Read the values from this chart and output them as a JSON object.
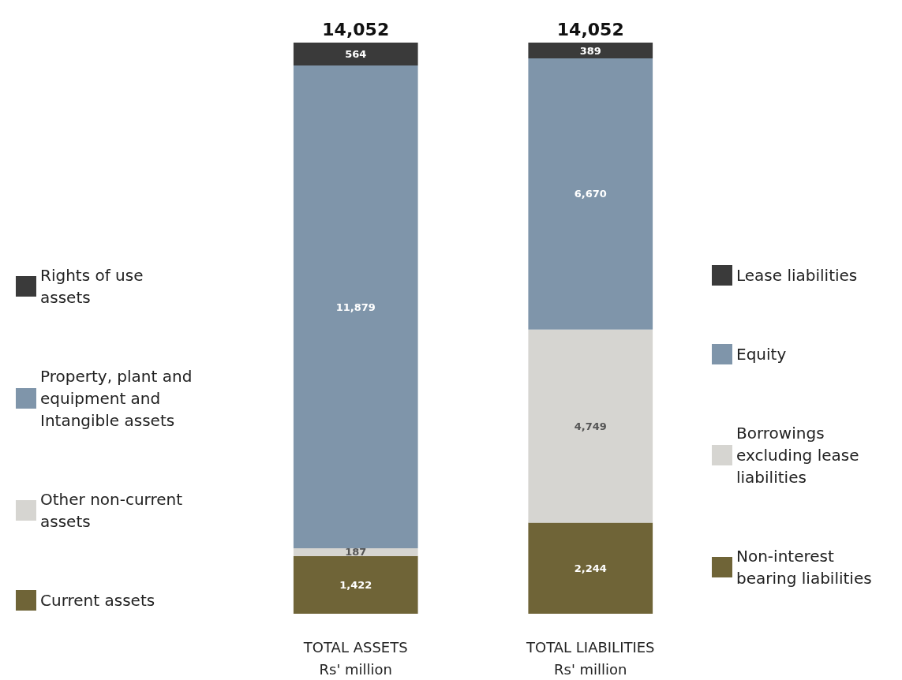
{
  "chart_data": {
    "type": "bar",
    "stacked": true,
    "legend": "left",
    "categories": [
      "TOTAL ASSETS\nRs' million",
      "TOTAL LIABILITIES\nRs' million"
    ],
    "series": [
      {
        "name": "Current assets",
        "color": "#6f6437",
        "values": [
          1422,
          null
        ],
        "value_labels": [
          "1,422",
          null
        ]
      },
      {
        "name": "Other non-current assets",
        "color": "#d6d5d1",
        "values": [
          187,
          null
        ],
        "value_labels": [
          "187",
          null
        ]
      },
      {
        "name": "Property, plant and equipment and Intangible assets",
        "color": "#7f95aa",
        "values": [
          11879,
          null
        ],
        "value_labels": [
          "11,879",
          null
        ]
      },
      {
        "name": "Rights of use assets",
        "color": "#3a3a3a",
        "values": [
          564,
          null
        ],
        "value_labels": [
          "564",
          null
        ]
      },
      {
        "name": "Non-interest bearing liabilities",
        "color": "#6f6437",
        "values": [
          null,
          2244
        ],
        "value_labels": [
          null,
          "2,244"
        ]
      },
      {
        "name": "Borrowings excluding lease liabilities",
        "color": "#d6d5d1",
        "values": [
          null,
          4749
        ],
        "value_labels": [
          null,
          "4,749"
        ]
      },
      {
        "name": "Equity",
        "color": "#7f95aa",
        "values": [
          null,
          6670
        ],
        "value_labels": [
          null,
          "6,670"
        ]
      },
      {
        "name": "Lease liabilities",
        "color": "#3a3a3a",
        "values": [
          null,
          389
        ],
        "value_labels": [
          null,
          "389"
        ]
      }
    ],
    "totals": [
      "14,052",
      "14,052"
    ]
  }
}
